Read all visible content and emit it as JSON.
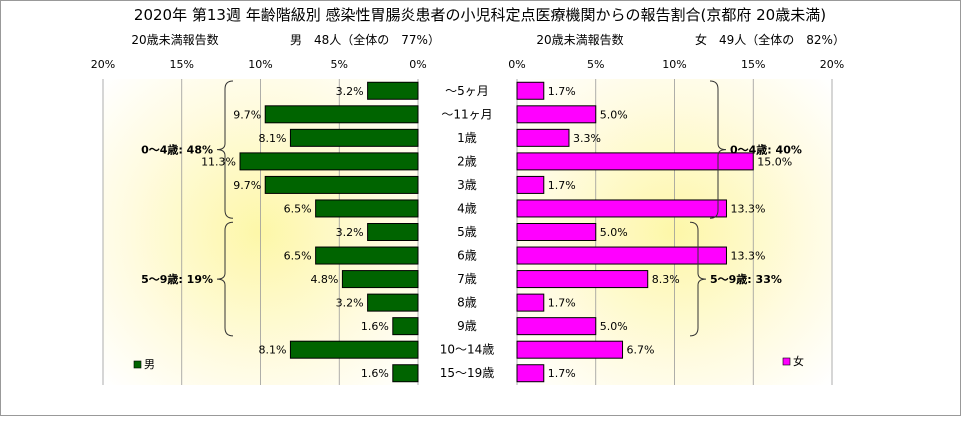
{
  "chart_data": {
    "type": "bar",
    "title": "2020年 第13週 年齢階級別 感染性胃腸炎患者の小児科定点医療機関からの報告割合(京都府 20歳未満)",
    "categories": [
      "～5ヶ月",
      "～11ヶ月",
      "1歳",
      "2歳",
      "3歳",
      "4歳",
      "5歳",
      "6歳",
      "7歳",
      "8歳",
      "9歳",
      "10～14歳",
      "15～19歳"
    ],
    "series": [
      {
        "name": "男",
        "color": "#006400",
        "values": [
          3.2,
          9.7,
          8.1,
          11.3,
          9.7,
          6.5,
          3.2,
          6.5,
          4.8,
          3.2,
          1.6,
          8.1,
          1.6
        ],
        "labels": [
          "3.2%",
          "9.7%",
          "8.1%",
          "11.3%",
          "9.7%",
          "6.5%",
          "3.2%",
          "6.5%",
          "4.8%",
          "3.2%",
          "1.6%",
          "8.1%",
          "1.6%"
        ]
      },
      {
        "name": "女",
        "color": "#ff00ff",
        "values": [
          1.7,
          5.0,
          3.3,
          15.0,
          1.7,
          13.3,
          5.0,
          13.3,
          8.3,
          1.7,
          5.0,
          6.7,
          1.7
        ],
        "labels": [
          "1.7%",
          "5.0%",
          "3.3%",
          "15.0%",
          "1.7%",
          "13.3%",
          "5.0%",
          "13.3%",
          "8.3%",
          "1.7%",
          "5.0%",
          "6.7%",
          "1.7%"
        ]
      }
    ],
    "xlim": [
      0,
      20
    ],
    "left_axis_header": "20歳未満報告数",
    "left_summary": "男　48人（全体の　77%）",
    "right_axis_header": "20歳未満報告数",
    "right_summary": "女　49人（全体の　82%）",
    "left_ticks": [
      "20%",
      "15%",
      "10%",
      "5%",
      "0%"
    ],
    "right_ticks": [
      "0%",
      "5%",
      "10%",
      "15%",
      "20%"
    ],
    "left_groups": [
      {
        "label": "0～4歳: 48%",
        "from": 0,
        "to": 5
      },
      {
        "label": "5～9歳: 19%",
        "from": 6,
        "to": 10
      }
    ],
    "right_groups": [
      {
        "label": "0～4歳: 40%",
        "from": 0,
        "to": 5
      },
      {
        "label": "5～9歳: 33%",
        "from": 6,
        "to": 10
      }
    ],
    "legend": {
      "male": "男",
      "female": "女"
    },
    "background": "radial yellow gradient",
    "grid": true
  }
}
